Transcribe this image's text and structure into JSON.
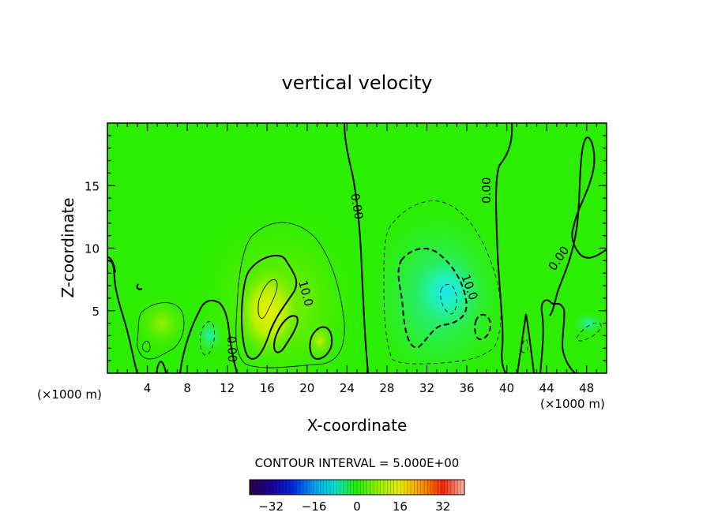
{
  "chart_data": {
    "type": "heatmap",
    "title": "vertical velocity",
    "xlabel": "X-coordinate",
    "ylabel": "Z-coordinate",
    "x_unit_left": "(×1000 m)",
    "x_unit_right": "(×1000 m)",
    "xlim": [
      0,
      50
    ],
    "ylim": [
      0,
      20
    ],
    "x_ticks": [
      "4",
      "8",
      "12",
      "16",
      "20",
      "24",
      "28",
      "32",
      "36",
      "40",
      "44",
      "48"
    ],
    "y_ticks": [
      "5",
      "10",
      "15"
    ],
    "contour_interval_text": "CONTOUR INTERVAL = 5.000E+00",
    "contour_labels": [
      "0.00",
      "10.0",
      "0.00",
      "10.0",
      "0.00",
      "0.00"
    ],
    "colorbar": {
      "range": [
        -40,
        40
      ],
      "tick_labels": [
        "-32",
        "-16",
        "0",
        "16",
        "32"
      ]
    },
    "features": [
      {
        "kind": "updraft",
        "x": 16.5,
        "z": 5.5,
        "peak": 14
      },
      {
        "kind": "updraft",
        "x": 21.5,
        "z": 2.5,
        "peak": 11
      },
      {
        "kind": "updraft",
        "x": 5.5,
        "z": 4,
        "peak": 6
      },
      {
        "kind": "downdraft",
        "x": 34,
        "z": 6.5,
        "peak": -14
      },
      {
        "kind": "downdraft",
        "x": 10,
        "z": 3,
        "peak": -5
      },
      {
        "kind": "downdraft",
        "x": 47,
        "z": 3.5,
        "peak": -4
      }
    ],
    "grid": false,
    "legend": "colorbar-bottom"
  }
}
